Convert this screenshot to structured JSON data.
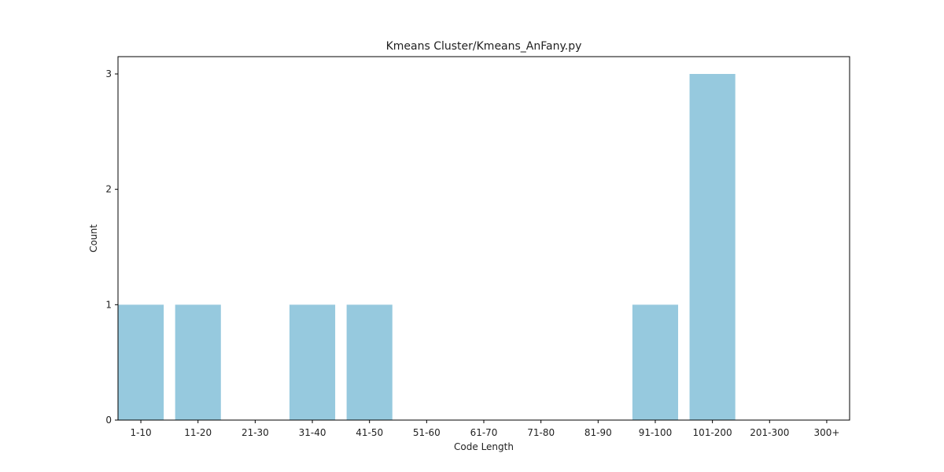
{
  "chart_data": {
    "type": "bar",
    "title": "Kmeans Cluster/Kmeans_AnFany.py",
    "xlabel": "Code Length",
    "ylabel": "Count",
    "categories": [
      "1-10",
      "11-20",
      "21-30",
      "31-40",
      "41-50",
      "51-60",
      "61-70",
      "71-80",
      "81-90",
      "91-100",
      "101-200",
      "201-300",
      "300+"
    ],
    "values": [
      1,
      1,
      0,
      1,
      1,
      0,
      0,
      0,
      0,
      1,
      3,
      0,
      0
    ],
    "yticks": [
      "0",
      "1",
      "2",
      "3"
    ],
    "ylim": [
      0,
      3.15
    ],
    "grid": false,
    "legend": "none",
    "bar_color": "#96c9de"
  }
}
